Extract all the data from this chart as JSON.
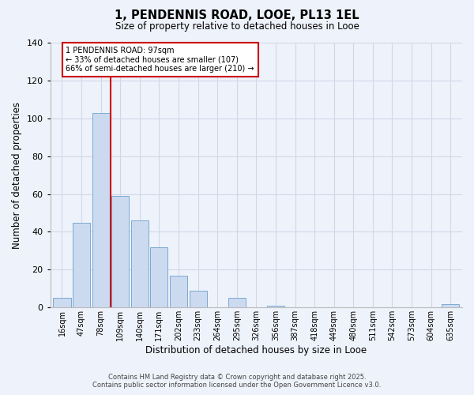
{
  "title": "1, PENDENNIS ROAD, LOOE, PL13 1EL",
  "subtitle": "Size of property relative to detached houses in Looe",
  "xlabel": "Distribution of detached houses by size in Looe",
  "ylabel": "Number of detached properties",
  "categories": [
    "16sqm",
    "47sqm",
    "78sqm",
    "109sqm",
    "140sqm",
    "171sqm",
    "202sqm",
    "233sqm",
    "264sqm",
    "295sqm",
    "326sqm",
    "356sqm",
    "387sqm",
    "418sqm",
    "449sqm",
    "480sqm",
    "511sqm",
    "542sqm",
    "573sqm",
    "604sqm",
    "635sqm"
  ],
  "values": [
    5,
    45,
    103,
    59,
    46,
    32,
    17,
    9,
    0,
    5,
    0,
    1,
    0,
    0,
    0,
    0,
    0,
    0,
    0,
    0,
    2
  ],
  "bar_color": "#ccdaf0",
  "bar_edge_color": "#7aaad0",
  "ylim": [
    0,
    140
  ],
  "yticks": [
    0,
    20,
    40,
    60,
    80,
    100,
    120,
    140
  ],
  "grid_color": "#d0d8e8",
  "bg_color": "#eef2fa",
  "property_line_label": "1 PENDENNIS ROAD: 97sqm",
  "annotation_line1": "← 33% of detached houses are smaller (107)",
  "annotation_line2": "66% of semi-detached houses are larger (210) →",
  "annotation_box_color": "#ffffff",
  "annotation_box_edge": "#cc0000",
  "red_line_color": "#cc0000",
  "footnote1": "Contains HM Land Registry data © Crown copyright and database right 2025.",
  "footnote2": "Contains public sector information licensed under the Open Government Licence v3.0."
}
